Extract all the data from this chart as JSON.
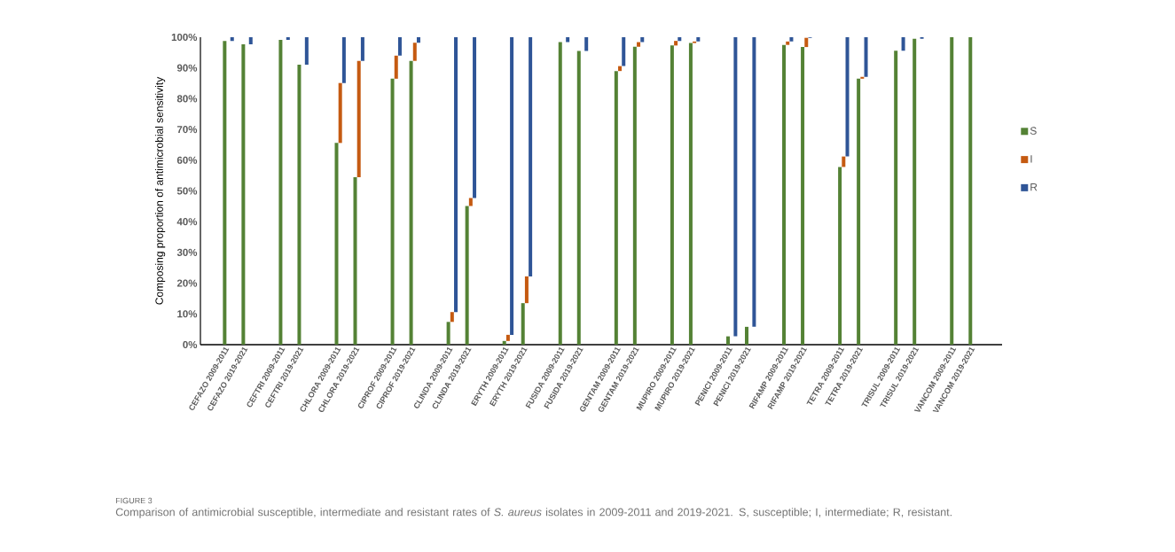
{
  "chart_data": {
    "type": "bar",
    "stacked": true,
    "categories": [
      "CEFAZO 2009-2011",
      "CEFAZO 2019-2021",
      null,
      "CEFTRI 2009-2011",
      "CEFTRI 2019-2021",
      null,
      "CHLORA 2009-2011",
      "CHLORA 2019-2021",
      null,
      "CIPROF 2009-2011",
      "CIPROF 2019-2021",
      null,
      "CLINDA 2009-2011",
      "CLINDA 2019-2021",
      null,
      "ERYTH 2009-2011",
      "ERYTH 2019-2021",
      null,
      "FUSIDA 2009-2011",
      "FUSIDA 2019-2021",
      null,
      "GENTAM 2009-2011",
      "GENTAM 2019-2021",
      null,
      "MUPIRO 2009-2011",
      "MUPIRO 2019-2021",
      null,
      "PENICI 2009-2011",
      "PENICI 2019-2021",
      null,
      "RIFAMP 2009-2011",
      "RIFAMP 2019-2021",
      null,
      "TETRA 2009-2011",
      "TETRA 2019-2021",
      null,
      "TRISUL 2009-2011",
      "TRISUL 2019-2021",
      null,
      "VANCOM 2009-2011",
      "VANCOM 2019-2021"
    ],
    "series": [
      {
        "name": "S",
        "color": "#548235",
        "values": [
          98.8,
          97.7,
          null,
          99.1,
          91.1,
          null,
          65.6,
          54.5,
          null,
          86.5,
          92.3,
          null,
          7.4,
          45.1,
          null,
          1.2,
          13.5,
          null,
          98.4,
          95.5,
          null,
          89.0,
          96.9,
          null,
          97.3,
          98.1,
          null,
          2.7,
          5.8,
          null,
          97.5,
          96.8,
          null,
          57.8,
          86.5,
          null,
          95.6,
          99.5,
          null,
          100,
          100
        ]
      },
      {
        "name": "I",
        "color": "#c55a11",
        "values": [
          0,
          0,
          null,
          0,
          0,
          null,
          19.5,
          37.8,
          null,
          7.5,
          5.9,
          null,
          3.2,
          2.6,
          null,
          2.0,
          8.7,
          null,
          0,
          0,
          null,
          1.6,
          1.5,
          null,
          1.5,
          0.5,
          null,
          0,
          0,
          null,
          1.1,
          3.0,
          null,
          3.4,
          0.6,
          null,
          0,
          0,
          null,
          0,
          0
        ]
      },
      {
        "name": "R",
        "color": "#2f5597",
        "values": [
          1.2,
          2.3,
          null,
          0.9,
          8.9,
          null,
          14.9,
          7.7,
          null,
          6.0,
          1.8,
          null,
          89.4,
          52.3,
          null,
          96.8,
          77.8,
          null,
          1.6,
          4.5,
          null,
          9.4,
          1.6,
          null,
          1.2,
          1.4,
          null,
          97.3,
          94.2,
          null,
          1.4,
          0.2,
          null,
          38.8,
          12.9,
          null,
          4.4,
          0.5,
          null,
          0,
          0
        ]
      }
    ],
    "ylabel": "Composing proportion of antimicrobial sensitivity",
    "ylim": [
      0,
      100
    ],
    "yticks": [
      {
        "value": 0,
        "label": "0%"
      },
      {
        "value": 10,
        "label": "10%"
      },
      {
        "value": 20,
        "label": "20%"
      },
      {
        "value": 30,
        "label": "30%"
      },
      {
        "value": 40,
        "label": "40%"
      },
      {
        "value": 50,
        "label": "50%"
      },
      {
        "value": 60,
        "label": "60%"
      },
      {
        "value": 70,
        "label": "70%"
      },
      {
        "value": 80,
        "label": "80%"
      },
      {
        "value": 90,
        "label": "90%"
      },
      {
        "value": 100,
        "label": "100%"
      }
    ],
    "legend": "right",
    "grid": false,
    "annotations": [
      "FIGURE 3",
      "Comparison of antimicrobial susceptible, intermediate and resistant rates of *S. aureus* isolates in 2009-2011 and 2019-2021. S, susceptible; I, intermediate; R, resistant."
    ]
  }
}
